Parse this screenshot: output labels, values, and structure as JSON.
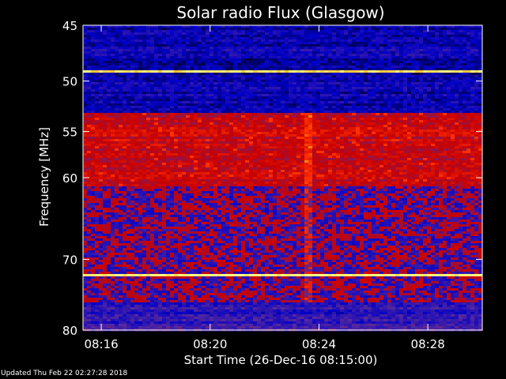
{
  "chart_data": {
    "type": "heatmap",
    "title": "Solar radio Flux (Glasgow)",
    "xlabel": "Start Time (26-Dec-16 08:15:00)",
    "ylabel": "Frequency [MHz]",
    "x_ticks": [
      "08:16",
      "08:20",
      "08:24",
      "08:28"
    ],
    "x_tick_minutes": [
      1,
      5,
      9,
      13
    ],
    "xlim_minutes": [
      0.33,
      15.0
    ],
    "y_ticks": [
      45,
      50,
      55,
      60,
      70,
      80
    ],
    "ylim": [
      45,
      80
    ],
    "y_scale": "log",
    "grid": false,
    "colormap": [
      "#000000",
      "#0000c8",
      "#5a2a9a",
      "#c80000",
      "#ff3000",
      "#ff9a00",
      "#ffff80"
    ],
    "bands": [
      {
        "from": 45.0,
        "to": 49.0,
        "level": 1,
        "label": "blue"
      },
      {
        "from": 49.0,
        "to": 49.3,
        "level": 6,
        "label": "bright line"
      },
      {
        "from": 49.3,
        "to": 53.0,
        "level": 1,
        "label": "blue"
      },
      {
        "from": 53.0,
        "to": 53.2,
        "level": 4,
        "label": "orange line"
      },
      {
        "from": 53.2,
        "to": 61.0,
        "level": 3,
        "label": "red"
      },
      {
        "from": 61.0,
        "to": 72.0,
        "level": 2,
        "label": "purple-red mix"
      },
      {
        "from": 72.0,
        "to": 72.4,
        "level": 6,
        "label": "bright line"
      },
      {
        "from": 72.4,
        "to": 76.0,
        "level": 2,
        "label": "purple-red mix"
      },
      {
        "from": 76.0,
        "to": 80.0,
        "level": 1.5,
        "label": "purple"
      }
    ],
    "vertical_feature_minutes": 8.6
  },
  "footer": {
    "updated_text": "Updated Thu Feb 22 02:27:28 2018"
  }
}
